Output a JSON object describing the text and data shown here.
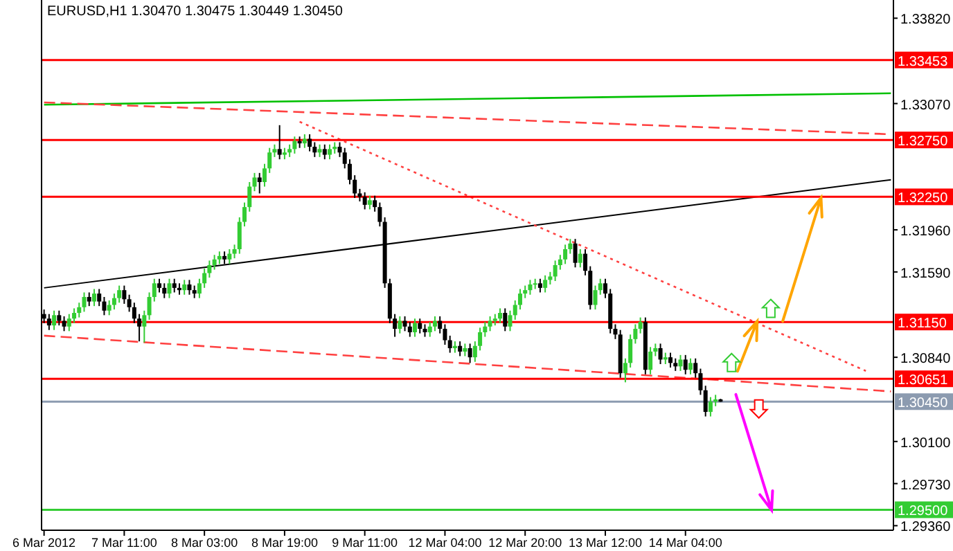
{
  "chart_data": {
    "type": "candlestick",
    "title": "EURUSD,H1  1.30470 1.30475 1.30449 1.30450",
    "categories": [
      "6 Mar 2012",
      null,
      null,
      null,
      null,
      null,
      null,
      null,
      null,
      null,
      null,
      null,
      null,
      null,
      null,
      null,
      "7 Mar 11:00",
      null,
      null,
      null,
      null,
      null,
      null,
      null,
      null,
      null,
      null,
      null,
      null,
      null,
      null,
      null,
      "8 Mar 03:00",
      null,
      null,
      null,
      null,
      null,
      null,
      null,
      null,
      null,
      null,
      null,
      null,
      null,
      null,
      null,
      "8 Mar 19:00",
      null,
      null,
      null,
      null,
      null,
      null,
      null,
      null,
      null,
      null,
      null,
      null,
      null,
      null,
      null,
      "9 Mar 11:00",
      null,
      null,
      null,
      null,
      null,
      null,
      null,
      null,
      null,
      null,
      null,
      null,
      null,
      null,
      null,
      "12 Mar 04:00",
      null,
      null,
      null,
      null,
      null,
      null,
      null,
      null,
      null,
      null,
      null,
      null,
      null,
      null,
      null,
      "12 Mar 20:00",
      null,
      null,
      null,
      null,
      null,
      null,
      null,
      null,
      null,
      null,
      null,
      null,
      null,
      null,
      null,
      "13 Mar 12:00",
      null,
      null,
      null,
      null,
      null,
      null,
      null,
      null,
      null,
      null,
      null,
      null,
      null,
      null,
      null,
      "14 Mar 04:00",
      null,
      null,
      null,
      null,
      null,
      null,
      null,
      null,
      null,
      null,
      null,
      null,
      null,
      null,
      null,
      null,
      null,
      null,
      null,
      null,
      null,
      null,
      null,
      null,
      null,
      null,
      null,
      null,
      null,
      null,
      null,
      null,
      null,
      null,
      null,
      null,
      null,
      null,
      null,
      null,
      null
    ],
    "ohlc": [
      [
        1.3122,
        1.3126,
        1.3114,
        1.3118
      ],
      [
        1.3118,
        1.3122,
        1.3108,
        1.3112
      ],
      [
        1.3112,
        1.3125,
        1.3108,
        1.3121
      ],
      [
        1.3121,
        1.3125,
        1.3112,
        1.3116
      ],
      [
        1.3116,
        1.312,
        1.3107,
        1.3111
      ],
      [
        1.3111,
        1.3122,
        1.3107,
        1.3118
      ],
      [
        1.3118,
        1.3127,
        1.3114,
        1.3123
      ],
      [
        1.3123,
        1.3132,
        1.3119,
        1.3128
      ],
      [
        1.3128,
        1.3141,
        1.3124,
        1.3137
      ],
      [
        1.3137,
        1.3141,
        1.3129,
        1.3133
      ],
      [
        1.3133,
        1.3144,
        1.3129,
        1.314
      ],
      [
        1.314,
        1.3144,
        1.3129,
        1.3133
      ],
      [
        1.3133,
        1.3137,
        1.3121,
        1.3125
      ],
      [
        1.3125,
        1.3134,
        1.3121,
        1.313
      ],
      [
        1.313,
        1.314,
        1.3126,
        1.3136
      ],
      [
        1.3136,
        1.3147,
        1.3132,
        1.3143
      ],
      [
        1.3143,
        1.3147,
        1.3131,
        1.3135
      ],
      [
        1.3135,
        1.3139,
        1.3124,
        1.3128
      ],
      [
        1.3128,
        1.3132,
        1.3114,
        1.3118
      ],
      [
        1.3118,
        1.3122,
        1.3098,
        1.3111
      ],
      [
        1.3111,
        1.3125,
        1.3097,
        1.3121
      ],
      [
        1.3121,
        1.3141,
        1.3117,
        1.3137
      ],
      [
        1.3137,
        1.3153,
        1.3133,
        1.3149
      ],
      [
        1.3149,
        1.3153,
        1.3141,
        1.3145
      ],
      [
        1.3145,
        1.3149,
        1.3136,
        1.314
      ],
      [
        1.314,
        1.3153,
        1.3136,
        1.3149
      ],
      [
        1.3149,
        1.3153,
        1.3141,
        1.3145
      ],
      [
        1.3145,
        1.3149,
        1.3139,
        1.3143
      ],
      [
        1.3143,
        1.3152,
        1.3139,
        1.3148
      ],
      [
        1.3148,
        1.3152,
        1.3139,
        1.3143
      ],
      [
        1.3143,
        1.3147,
        1.3136,
        1.314
      ],
      [
        1.314,
        1.3153,
        1.3136,
        1.3149
      ],
      [
        1.3149,
        1.3162,
        1.3145,
        1.3158
      ],
      [
        1.3158,
        1.3169,
        1.3154,
        1.3165
      ],
      [
        1.3165,
        1.3174,
        1.3161,
        1.317
      ],
      [
        1.317,
        1.3177,
        1.3166,
        1.3173
      ],
      [
        1.3173,
        1.3177,
        1.3166,
        1.317
      ],
      [
        1.317,
        1.3179,
        1.3166,
        1.3175
      ],
      [
        1.3175,
        1.3183,
        1.3171,
        1.3179
      ],
      [
        1.3179,
        1.3207,
        1.3175,
        1.3203
      ],
      [
        1.3203,
        1.322,
        1.3199,
        1.3216
      ],
      [
        1.3216,
        1.3238,
        1.3212,
        1.3234
      ],
      [
        1.3234,
        1.3246,
        1.323,
        1.3242
      ],
      [
        1.3242,
        1.3246,
        1.3228,
        1.3238
      ],
      [
        1.3238,
        1.3254,
        1.3234,
        1.325
      ],
      [
        1.325,
        1.3268,
        1.3246,
        1.3264
      ],
      [
        1.3264,
        1.3271,
        1.326,
        1.3267
      ],
      [
        1.3267,
        1.3288,
        1.3258,
        1.3262
      ],
      [
        1.3262,
        1.3268,
        1.3258,
        1.3264
      ],
      [
        1.3264,
        1.3271,
        1.326,
        1.3267
      ],
      [
        1.3267,
        1.3278,
        1.3263,
        1.3274
      ],
      [
        1.3274,
        1.3278,
        1.3268,
        1.3272
      ],
      [
        1.3272,
        1.328,
        1.3268,
        1.3276
      ],
      [
        1.3276,
        1.328,
        1.3265,
        1.3269
      ],
      [
        1.3269,
        1.3273,
        1.326,
        1.3264
      ],
      [
        1.3264,
        1.3271,
        1.326,
        1.3267
      ],
      [
        1.3267,
        1.3271,
        1.3258,
        1.3262
      ],
      [
        1.3262,
        1.3271,
        1.3258,
        1.3267
      ],
      [
        1.3267,
        1.3273,
        1.3263,
        1.3269
      ],
      [
        1.3269,
        1.3273,
        1.326,
        1.3264
      ],
      [
        1.3264,
        1.3268,
        1.325,
        1.3254
      ],
      [
        1.3254,
        1.3258,
        1.3236,
        1.324
      ],
      [
        1.324,
        1.3244,
        1.3224,
        1.3228
      ],
      [
        1.3228,
        1.3232,
        1.3221,
        1.3225
      ],
      [
        1.3225,
        1.3229,
        1.3214,
        1.3218
      ],
      [
        1.3218,
        1.3226,
        1.3214,
        1.3222
      ],
      [
        1.3222,
        1.3226,
        1.3212,
        1.3216
      ],
      [
        1.3216,
        1.322,
        1.3199,
        1.3203
      ],
      [
        1.3203,
        1.3207,
        1.3145,
        1.3149
      ],
      [
        1.3149,
        1.3153,
        1.3114,
        1.3118
      ],
      [
        1.3118,
        1.3122,
        1.3102,
        1.3109
      ],
      [
        1.3109,
        1.312,
        1.3105,
        1.3116
      ],
      [
        1.3116,
        1.312,
        1.3107,
        1.3111
      ],
      [
        1.3111,
        1.3115,
        1.3102,
        1.3106
      ],
      [
        1.3106,
        1.3118,
        1.3102,
        1.3114
      ],
      [
        1.3114,
        1.3118,
        1.3105,
        1.3109
      ],
      [
        1.3109,
        1.3113,
        1.3102,
        1.3106
      ],
      [
        1.3106,
        1.3115,
        1.3102,
        1.3111
      ],
      [
        1.3111,
        1.312,
        1.3107,
        1.3116
      ],
      [
        1.3116,
        1.312,
        1.3105,
        1.3109
      ],
      [
        1.3109,
        1.3113,
        1.3095,
        1.3099
      ],
      [
        1.3099,
        1.3103,
        1.3088,
        1.3092
      ],
      [
        1.3092,
        1.3098,
        1.3088,
        1.3094
      ],
      [
        1.3094,
        1.3098,
        1.3085,
        1.3089
      ],
      [
        1.3089,
        1.3096,
        1.3085,
        1.3092
      ],
      [
        1.3092,
        1.3096,
        1.3079,
        1.3084
      ],
      [
        1.3084,
        1.3098,
        1.308,
        1.3094
      ],
      [
        1.3094,
        1.311,
        1.309,
        1.3106
      ],
      [
        1.3106,
        1.3115,
        1.3102,
        1.3111
      ],
      [
        1.3111,
        1.312,
        1.3107,
        1.3116
      ],
      [
        1.3116,
        1.3122,
        1.3112,
        1.3118
      ],
      [
        1.3118,
        1.3127,
        1.3114,
        1.3123
      ],
      [
        1.3123,
        1.3127,
        1.3107,
        1.3111
      ],
      [
        1.3111,
        1.3125,
        1.3107,
        1.3121
      ],
      [
        1.3121,
        1.3134,
        1.3117,
        1.313
      ],
      [
        1.313,
        1.3144,
        1.3126,
        1.314
      ],
      [
        1.314,
        1.3147,
        1.3136,
        1.3143
      ],
      [
        1.3143,
        1.3152,
        1.3139,
        1.3148
      ],
      [
        1.3148,
        1.3153,
        1.3144,
        1.3149
      ],
      [
        1.3149,
        1.3153,
        1.3141,
        1.3145
      ],
      [
        1.3145,
        1.3156,
        1.3141,
        1.3152
      ],
      [
        1.3152,
        1.3159,
        1.3148,
        1.3155
      ],
      [
        1.3155,
        1.3169,
        1.3151,
        1.3165
      ],
      [
        1.3165,
        1.3174,
        1.3161,
        1.317
      ],
      [
        1.317,
        1.3183,
        1.3166,
        1.3179
      ],
      [
        1.3179,
        1.3188,
        1.3175,
        1.3184
      ],
      [
        1.3184,
        1.3188,
        1.3163,
        1.3167
      ],
      [
        1.3167,
        1.3179,
        1.3163,
        1.3175
      ],
      [
        1.3175,
        1.3179,
        1.3156,
        1.316
      ],
      [
        1.316,
        1.3164,
        1.3126,
        1.313
      ],
      [
        1.313,
        1.3147,
        1.3126,
        1.3143
      ],
      [
        1.3143,
        1.3153,
        1.3139,
        1.3149
      ],
      [
        1.3149,
        1.3153,
        1.3136,
        1.314
      ],
      [
        1.314,
        1.3144,
        1.3105,
        1.3109
      ],
      [
        1.3109,
        1.3113,
        1.31,
        1.3104
      ],
      [
        1.3104,
        1.3108,
        1.3066,
        1.307
      ],
      [
        1.307,
        1.3083,
        1.3062,
        1.3079
      ],
      [
        1.3079,
        1.3104,
        1.3075,
        1.31
      ],
      [
        1.31,
        1.3113,
        1.3096,
        1.3109
      ],
      [
        1.3109,
        1.3119,
        1.3105,
        1.3115
      ],
      [
        1.3115,
        1.3119,
        1.3069,
        1.3073
      ],
      [
        1.3073,
        1.3093,
        1.3069,
        1.3089
      ],
      [
        1.3089,
        1.3096,
        1.3085,
        1.3092
      ],
      [
        1.3092,
        1.3096,
        1.3078,
        1.3082
      ],
      [
        1.3082,
        1.3088,
        1.3078,
        1.3084
      ],
      [
        1.3084,
        1.3088,
        1.3075,
        1.3079
      ],
      [
        1.3079,
        1.3083,
        1.3072,
        1.3076
      ],
      [
        1.3076,
        1.3086,
        1.3072,
        1.3082
      ],
      [
        1.3082,
        1.3086,
        1.3069,
        1.3073
      ],
      [
        1.3073,
        1.3083,
        1.3069,
        1.3079
      ],
      [
        1.3079,
        1.3083,
        1.3066,
        1.307
      ],
      [
        1.307,
        1.3074,
        1.3051,
        1.3055
      ],
      [
        1.3055,
        1.3059,
        1.3032,
        1.3036
      ],
      [
        1.3036,
        1.3049,
        1.3032,
        1.3045
      ],
      [
        1.3045,
        1.3051,
        1.3041,
        1.3047
      ],
      [
        1.3047,
        1.30475,
        1.30449,
        1.3045
      ],
      null,
      null,
      null,
      null,
      null,
      null,
      null,
      null,
      null,
      null,
      null,
      null,
      null,
      null,
      null,
      null,
      null,
      null,
      null,
      null,
      null,
      null,
      null,
      null,
      null,
      null,
      null,
      null,
      null,
      null,
      null,
      null,
      null,
      null
    ],
    "series": [
      {
        "type": "line",
        "color": "#000000",
        "values": [
          1.3145,
          null,
          null,
          null,
          null,
          null,
          null,
          null,
          null,
          null,
          null,
          null,
          null,
          null,
          null,
          null,
          null,
          null,
          null,
          null,
          null,
          null,
          null,
          null,
          null,
          null,
          null,
          null,
          null,
          null,
          null,
          null,
          null,
          null,
          null,
          null,
          null,
          null,
          null,
          null,
          null,
          null,
          null,
          null,
          null,
          null,
          null,
          null,
          null,
          null,
          null,
          null,
          null,
          null,
          null,
          null,
          null,
          null,
          null,
          null,
          null,
          null,
          null,
          null,
          null,
          null,
          null,
          null,
          null,
          null,
          null,
          null,
          null,
          null,
          null,
          null,
          null,
          null,
          null,
          null,
          null,
          null,
          null,
          null,
          null,
          null,
          null,
          null,
          null,
          null,
          null,
          null,
          null,
          null,
          null,
          null,
          null,
          null,
          null,
          null,
          null,
          null,
          null,
          null,
          null,
          null,
          null,
          null,
          null,
          null,
          null,
          null,
          null,
          null,
          null,
          null,
          null,
          null,
          null,
          null,
          null,
          null,
          null,
          null,
          null,
          null,
          null,
          null,
          null,
          null,
          null,
          null,
          null,
          null,
          null,
          null,
          null,
          null,
          null,
          null,
          null,
          null,
          null,
          null,
          null,
          null,
          null,
          null,
          null,
          null,
          null,
          null,
          null,
          null,
          null,
          null,
          null,
          null,
          null,
          null,
          null,
          null,
          null,
          null,
          null,
          null,
          null,
          null,
          null,
          1.324
        ]
      },
      {
        "type": "line",
        "color": "#00c000",
        "values": [
          1.3306,
          null,
          null,
          null,
          null,
          null,
          null,
          null,
          null,
          null,
          null,
          null,
          null,
          null,
          null,
          null,
          null,
          null,
          null,
          null,
          null,
          null,
          null,
          null,
          null,
          null,
          null,
          null,
          null,
          null,
          null,
          null,
          null,
          null,
          null,
          null,
          null,
          null,
          null,
          null,
          null,
          null,
          null,
          null,
          null,
          null,
          null,
          null,
          null,
          null,
          null,
          null,
          null,
          null,
          null,
          null,
          null,
          null,
          null,
          null,
          null,
          null,
          null,
          null,
          null,
          null,
          null,
          null,
          null,
          null,
          null,
          null,
          null,
          null,
          null,
          null,
          null,
          null,
          null,
          null,
          null,
          null,
          null,
          null,
          null,
          null,
          null,
          null,
          null,
          null,
          null,
          null,
          null,
          null,
          null,
          null,
          null,
          null,
          null,
          null,
          null,
          null,
          null,
          null,
          null,
          null,
          null,
          null,
          null,
          null,
          null,
          null,
          null,
          null,
          null,
          null,
          null,
          null,
          null,
          null,
          null,
          null,
          null,
          null,
          null,
          null,
          null,
          null,
          null,
          null,
          null,
          null,
          null,
          null,
          null,
          null,
          null,
          null,
          null,
          null,
          null,
          null,
          null,
          null,
          null,
          null,
          null,
          null,
          null,
          null,
          null,
          null,
          null,
          null,
          null,
          null,
          null,
          null,
          null,
          null,
          null,
          null,
          null,
          null,
          null,
          null,
          null,
          null,
          null,
          1.3316
        ]
      },
      {
        "type": "line",
        "color": "#ff4040",
        "line_style": "dashed",
        "values": [
          1.3308,
          null,
          null,
          null,
          null,
          null,
          null,
          null,
          null,
          null,
          null,
          null,
          null,
          null,
          null,
          null,
          null,
          null,
          null,
          null,
          null,
          null,
          null,
          null,
          null,
          null,
          null,
          null,
          null,
          null,
          null,
          null,
          null,
          null,
          null,
          null,
          null,
          null,
          null,
          null,
          null,
          null,
          null,
          null,
          null,
          null,
          null,
          null,
          null,
          null,
          null,
          null,
          null,
          null,
          null,
          null,
          null,
          null,
          null,
          null,
          null,
          null,
          null,
          null,
          null,
          null,
          null,
          null,
          null,
          null,
          null,
          null,
          null,
          null,
          null,
          null,
          null,
          null,
          null,
          null,
          null,
          null,
          null,
          null,
          null,
          null,
          null,
          null,
          null,
          null,
          null,
          null,
          null,
          null,
          null,
          null,
          null,
          null,
          null,
          null,
          null,
          null,
          null,
          null,
          null,
          null,
          null,
          null,
          null,
          null,
          null,
          null,
          null,
          null,
          null,
          null,
          null,
          null,
          null,
          null,
          null,
          null,
          null,
          null,
          null,
          null,
          null,
          null,
          null,
          null,
          null,
          null,
          null,
          null,
          null,
          null,
          null,
          null,
          null,
          null,
          null,
          null,
          null,
          null,
          null,
          null,
          null,
          null,
          null,
          null,
          null,
          null,
          null,
          null,
          null,
          null,
          null,
          null,
          null,
          null,
          null,
          null,
          null,
          null,
          null,
          null,
          null,
          null,
          null,
          1.328
        ]
      },
      {
        "type": "line",
        "color": "#ff4040",
        "line_style": "dotted",
        "values": [
          null,
          null,
          null,
          null,
          null,
          null,
          null,
          null,
          null,
          null,
          null,
          null,
          null,
          null,
          null,
          null,
          null,
          null,
          null,
          null,
          null,
          null,
          null,
          null,
          null,
          null,
          null,
          null,
          null,
          null,
          null,
          null,
          null,
          null,
          null,
          null,
          null,
          null,
          null,
          null,
          null,
          null,
          null,
          null,
          null,
          null,
          null,
          null,
          null,
          null,
          null,
          1.3291,
          null,
          null,
          null,
          null,
          null,
          null,
          null,
          null,
          null,
          null,
          null,
          null,
          null,
          null,
          null,
          null,
          null,
          null,
          null,
          null,
          null,
          null,
          null,
          null,
          null,
          null,
          null,
          null,
          null,
          null,
          null,
          null,
          null,
          null,
          null,
          null,
          null,
          null,
          null,
          null,
          null,
          null,
          null,
          null,
          null,
          null,
          null,
          null,
          null,
          null,
          null,
          null,
          null,
          null,
          null,
          null,
          null,
          null,
          null,
          null,
          null,
          null,
          null,
          null,
          null,
          null,
          null,
          null,
          null,
          null,
          null,
          null,
          null,
          null,
          null,
          null,
          null,
          null,
          null,
          null,
          null,
          null,
          null,
          null,
          null,
          null,
          null,
          null,
          null,
          null,
          null,
          null,
          null,
          null,
          null,
          null,
          null,
          null,
          null,
          null,
          null,
          null,
          null,
          null,
          null,
          null,
          null,
          null,
          null,
          null,
          null,
          null,
          1.3072,
          null,
          null,
          null,
          null,
          null
        ]
      },
      {
        "type": "line",
        "color": "#ff4040",
        "line_style": "dashed",
        "values": [
          1.3103,
          null,
          null,
          null,
          null,
          null,
          null,
          null,
          null,
          null,
          null,
          null,
          null,
          null,
          null,
          null,
          null,
          null,
          null,
          null,
          null,
          null,
          null,
          null,
          null,
          null,
          null,
          null,
          null,
          null,
          null,
          null,
          null,
          null,
          null,
          null,
          null,
          null,
          null,
          null,
          null,
          null,
          null,
          null,
          null,
          null,
          null,
          null,
          null,
          null,
          null,
          null,
          null,
          null,
          null,
          null,
          null,
          null,
          null,
          null,
          null,
          null,
          null,
          null,
          null,
          null,
          null,
          null,
          null,
          null,
          null,
          null,
          null,
          null,
          null,
          null,
          null,
          null,
          null,
          null,
          null,
          null,
          null,
          null,
          null,
          null,
          null,
          null,
          null,
          null,
          null,
          null,
          null,
          null,
          null,
          null,
          null,
          null,
          null,
          null,
          null,
          null,
          null,
          null,
          null,
          null,
          null,
          null,
          null,
          null,
          null,
          null,
          null,
          null,
          null,
          null,
          null,
          null,
          null,
          null,
          null,
          null,
          null,
          null,
          null,
          null,
          null,
          null,
          null,
          null,
          null,
          null,
          null,
          null,
          null,
          null,
          null,
          null,
          null,
          null,
          null,
          null,
          null,
          null,
          null,
          null,
          null,
          null,
          null,
          null,
          null,
          null,
          null,
          null,
          null,
          null,
          null,
          null,
          null,
          null,
          null,
          null,
          null,
          null,
          null,
          null,
          null,
          null,
          null,
          1.3054
        ]
      }
    ],
    "ylim": [
      1.2932,
      1.3398
    ],
    "yticks": [
      {
        "value": 1.3382,
        "label": "1.33820"
      },
      {
        "value": 1.3307,
        "label": "1.33070"
      },
      {
        "value": 1.3196,
        "label": "1.31960"
      },
      {
        "value": 1.3159,
        "label": "1.31590"
      },
      {
        "value": 1.3084,
        "label": "1.30840"
      },
      {
        "value": 1.301,
        "label": "1.30100"
      },
      {
        "value": 1.2973,
        "label": "1.29730"
      },
      {
        "value": 1.2936,
        "label": "1.29360"
      }
    ],
    "ref_lines": [
      {
        "axis": "y",
        "value": 1.33453,
        "label": "1.33453",
        "color": "#ff0000"
      },
      {
        "axis": "y",
        "value": 1.3275,
        "label": "1.32750",
        "color": "#ff0000"
      },
      {
        "axis": "y",
        "value": 1.3225,
        "label": "1.32250",
        "color": "#ff0000"
      },
      {
        "axis": "y",
        "value": 1.3115,
        "label": "1.31150",
        "color": "#ff0000"
      },
      {
        "axis": "y",
        "value": 1.30651,
        "label": "1.30651",
        "color": "#ff0000"
      },
      {
        "axis": "y",
        "value": 1.3045,
        "label": "1.30450",
        "color": "#8c9bb0"
      },
      {
        "axis": "y",
        "value": 1.295,
        "label": "1.29500",
        "color": "#33cc33"
      }
    ]
  }
}
